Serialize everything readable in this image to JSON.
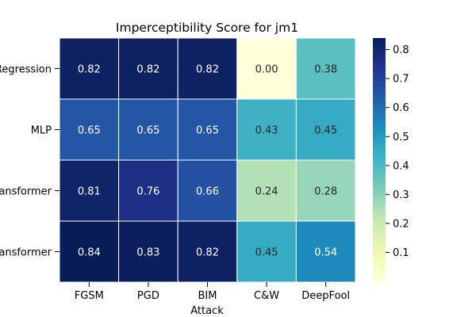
{
  "chart_data": {
    "type": "heatmap",
    "title": "Imperceptibility Score for jm1",
    "xlabel": "Attack",
    "ylabel": "",
    "columns": [
      "FGSM",
      "PGD",
      "BIM",
      "C&W",
      "DeepFool"
    ],
    "rows": [
      "Regression",
      "MLP",
      "Transformer",
      "Transformer"
    ],
    "values": [
      [
        0.82,
        0.82,
        0.82,
        0.0,
        0.38
      ],
      [
        0.65,
        0.65,
        0.65,
        0.43,
        0.45
      ],
      [
        0.81,
        0.76,
        0.66,
        0.24,
        0.28
      ],
      [
        0.84,
        0.83,
        0.82,
        0.45,
        0.54
      ]
    ],
    "value_format": "0.00",
    "colormap": "YlGnBu",
    "color_range": [
      0,
      0.84
    ],
    "colorbar_ticks": [
      "0.1",
      "0.2",
      "0.3",
      "0.4",
      "0.5",
      "0.6",
      "0.7",
      "0.8"
    ],
    "colorbar_tick_values": [
      0.1,
      0.2,
      0.3,
      0.4,
      0.5,
      0.6,
      0.7,
      0.8
    ],
    "grid_line_color": "#ffffff",
    "annotation_dark_text": "#262626",
    "annotation_light_text": "#ffffff"
  }
}
